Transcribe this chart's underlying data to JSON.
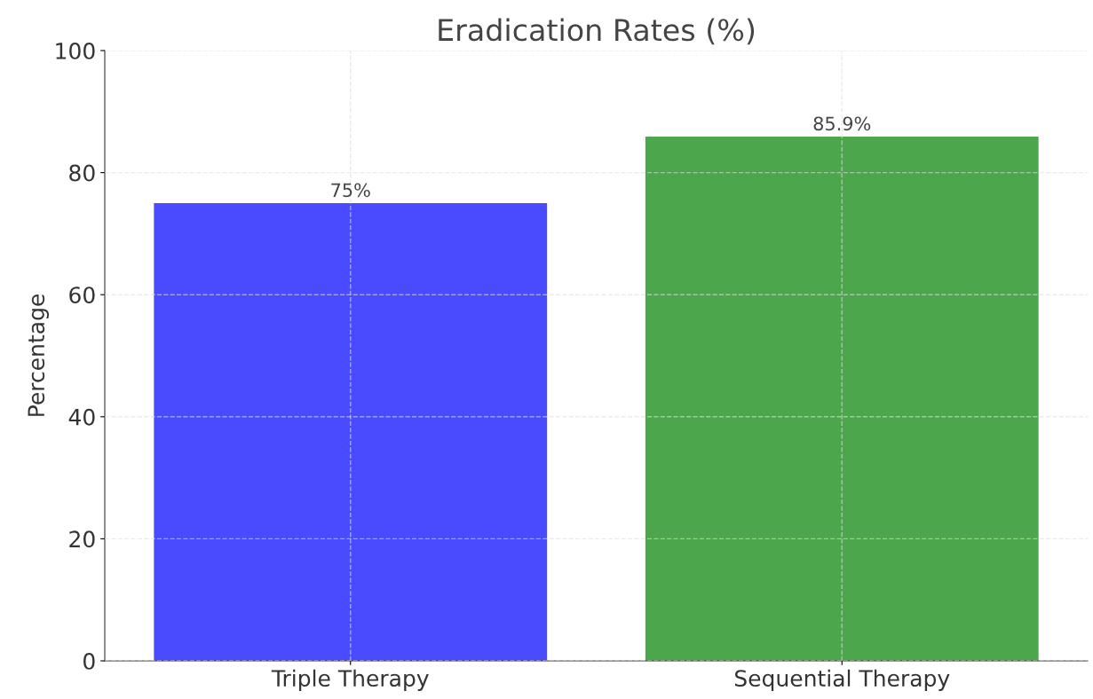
{
  "chart_data": {
    "type": "bar",
    "title": "Eradication Rates (%)",
    "ylabel": "Percentage",
    "categories": [
      "Triple Therapy",
      "Sequential Therapy"
    ],
    "values": [
      75,
      85.9
    ],
    "colors": [
      "#4a4aff",
      "#4ca64c"
    ],
    "value_labels": [
      "75%",
      "85.9%"
    ],
    "ylim": [
      0,
      100
    ],
    "yticks": [
      0,
      20,
      40,
      60,
      80,
      100
    ],
    "grid": true
  }
}
